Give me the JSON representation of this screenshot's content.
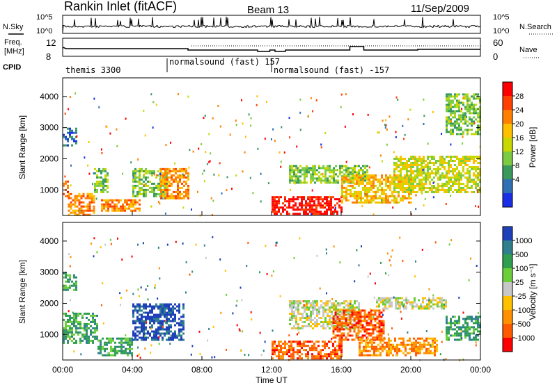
{
  "header": {
    "station": "Rankin Inlet (fitACF)",
    "beam": "Beam 13",
    "date": "11/Sep/2009"
  },
  "top_panels": {
    "nsky_label": "N.Sky",
    "nsearch_label": "N.Search",
    "nsky_ticks": [
      "10^5",
      "10^0"
    ],
    "freq_label_1": "Freq.",
    "freq_label_2": "[MHz]",
    "freq_ticks": [
      "12",
      "8"
    ],
    "nave_label": "Nave",
    "nave_ticks": [
      "60",
      "0"
    ],
    "cpid_label": "CPID"
  },
  "cpid_segments": [
    {
      "label": "themis 3300",
      "start_hour": 0.0
    },
    {
      "label": "normalsound (fast) 157",
      "start_hour": 6.0
    },
    {
      "label": "normalsound (fast) -157",
      "start_hour": 12.0
    }
  ],
  "power_colorbar": {
    "title": "Power [dB]",
    "ticks": [
      "28",
      "24",
      "20",
      "16",
      "12",
      "8",
      "4"
    ],
    "colors": [
      "#ff0000",
      "#ff4000",
      "#ff8000",
      "#ffc000",
      "#c8d800",
      "#7ccb40",
      "#3a9a5c",
      "#2f6fb4",
      "#1a2ee6"
    ]
  },
  "velocity_colorbar": {
    "title": "Velocity [m s⁻¹]",
    "ticks": [
      "1000",
      "500",
      "100",
      "25",
      "-25",
      "-100",
      "-500",
      "-1000"
    ],
    "colors": [
      "#1e40b8",
      "#2f7f8f",
      "#2f9e4f",
      "#6ccf3a",
      "#c8c8c8",
      "#ffc000",
      "#ff9000",
      "#ff5a00",
      "#ff0000"
    ]
  },
  "axes": {
    "x_ticks": [
      "00:00",
      "04:00",
      "08:00",
      "12:00",
      "16:00",
      "20:00",
      "00:00"
    ],
    "x_label": "Time UT",
    "y_ticks": [
      "1000",
      "2000",
      "3000",
      "4000"
    ],
    "y_label": "Slant Range [km]"
  },
  "chart_data": [
    {
      "type": "heatmap",
      "title": "Power [dB]",
      "xlabel": "Time UT",
      "ylabel": "Slant Range [km]",
      "xlim": [
        0,
        24
      ],
      "ylim": [
        180,
        4600
      ],
      "zlim": [
        3,
        30
      ],
      "regions": [
        {
          "t": [
            0.0,
            0.3
          ],
          "r": [
            800,
            1300
          ],
          "v": 25
        },
        {
          "t": [
            0.3,
            1.8
          ],
          "r": [
            200,
            900
          ],
          "v": 24
        },
        {
          "t": [
            1.8,
            2.6
          ],
          "r": [
            900,
            1700
          ],
          "v": 13
        },
        {
          "t": [
            2.2,
            4.4
          ],
          "r": [
            300,
            700
          ],
          "v": 22
        },
        {
          "t": [
            4.0,
            6.0
          ],
          "r": [
            800,
            1700
          ],
          "v": 14
        },
        {
          "t": [
            5.6,
            7.2
          ],
          "r": [
            700,
            1700
          ],
          "v": 23
        },
        {
          "t": [
            0.0,
            0.8
          ],
          "r": [
            2400,
            3000
          ],
          "v": 7
        },
        {
          "t": [
            12.0,
            16.0
          ],
          "r": [
            250,
            800
          ],
          "v": 29
        },
        {
          "t": [
            13.0,
            17.5
          ],
          "r": [
            1200,
            1800
          ],
          "v": 14
        },
        {
          "t": [
            16.0,
            20.0
          ],
          "r": [
            600,
            1500
          ],
          "v": 21
        },
        {
          "t": [
            19.0,
            24.0
          ],
          "r": [
            900,
            2100
          ],
          "v": 15
        },
        {
          "t": [
            22.0,
            24.0
          ],
          "r": [
            2800,
            4100
          ],
          "v": 12
        }
      ]
    },
    {
      "type": "heatmap",
      "title": "Velocity [m s⁻¹]",
      "xlabel": "Time UT",
      "ylabel": "Slant Range [km]",
      "xlim": [
        0,
        24
      ],
      "ylim": [
        180,
        4600
      ],
      "zlim": [
        -1000,
        1000
      ],
      "regions": [
        {
          "t": [
            0.0,
            2.0
          ],
          "r": [
            700,
            1700
          ],
          "v": 150
        },
        {
          "t": [
            2.0,
            4.0
          ],
          "r": [
            300,
            900
          ],
          "v": 80
        },
        {
          "t": [
            4.0,
            7.0
          ],
          "r": [
            800,
            2000
          ],
          "v": 800
        },
        {
          "t": [
            0.0,
            0.8
          ],
          "r": [
            2400,
            3000
          ],
          "v": 120
        },
        {
          "t": [
            12.0,
            16.0
          ],
          "r": [
            250,
            800
          ],
          "v": -350
        },
        {
          "t": [
            13.0,
            17.0
          ],
          "r": [
            1200,
            2100
          ],
          "v": 0
        },
        {
          "t": [
            15.5,
            18.5
          ],
          "r": [
            800,
            1800
          ],
          "v": -500
        },
        {
          "t": [
            17.0,
            21.5
          ],
          "r": [
            300,
            900
          ],
          "v": -200
        },
        {
          "t": [
            18.0,
            22.0
          ],
          "r": [
            1800,
            2200
          ],
          "v": 0
        },
        {
          "t": [
            22.0,
            24.0
          ],
          "r": [
            800,
            1600
          ],
          "v": 200
        }
      ]
    }
  ]
}
